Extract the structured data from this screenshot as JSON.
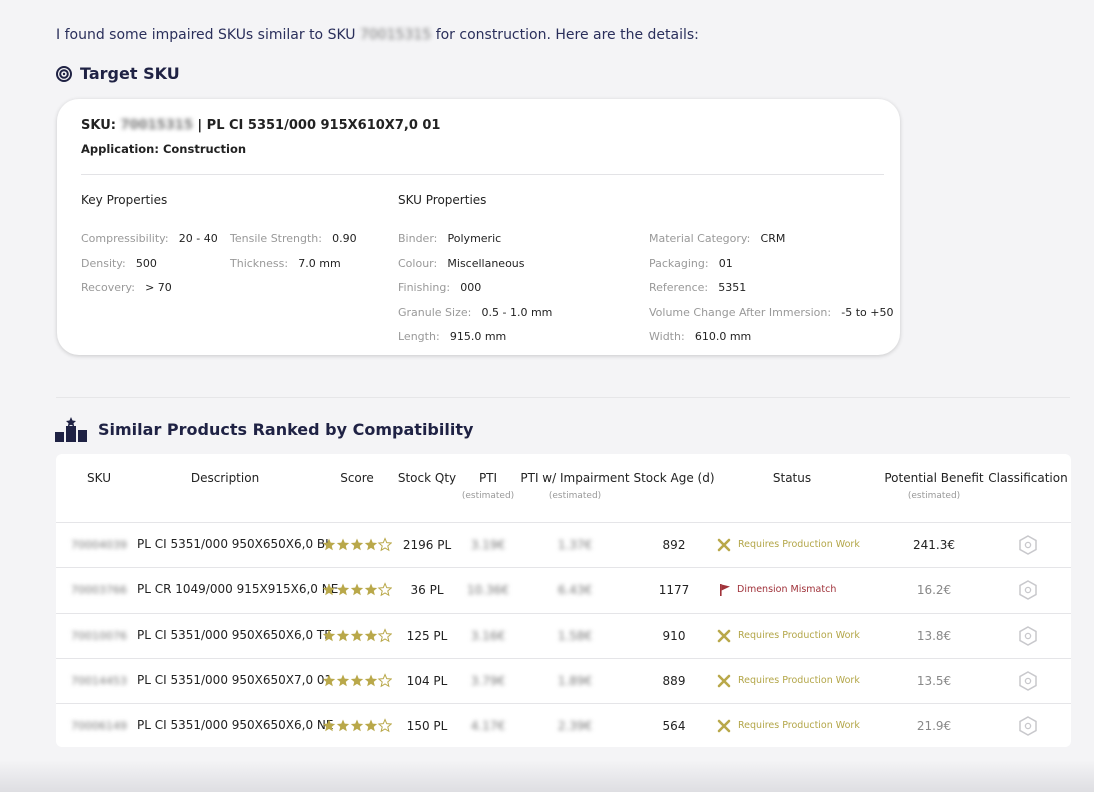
{
  "intro": {
    "before": "I found some impaired SKUs similar to SKU",
    "sku": "70015315",
    "after": "for construction. Here are the details:"
  },
  "target": {
    "heading": "Target SKU",
    "sku_label": "SKU:",
    "sku": "70015315",
    "sku_desc": "| PL CI 5351/000 915X610X7,0 01",
    "application": "Application: Construction",
    "key_title": "Key Properties",
    "key_props": [
      [
        {
          "label": "Compressibility:",
          "value": "20 - 40"
        },
        {
          "label": "Density:",
          "value": "500"
        },
        {
          "label": "Recovery:",
          "value": "> 70"
        }
      ],
      [
        {
          "label": "Tensile Strength:",
          "value": "0.90"
        },
        {
          "label": "Thickness:",
          "value": "7.0 mm"
        }
      ]
    ],
    "sku_title": "SKU Properties",
    "sku_props": [
      [
        {
          "label": "Binder:",
          "value": "Polymeric"
        },
        {
          "label": "Colour:",
          "value": "Miscellaneous"
        },
        {
          "label": "Finishing:",
          "value": "000"
        },
        {
          "label": "Granule Size:",
          "value": "0.5 - 1.0 mm"
        },
        {
          "label": "Length:",
          "value": "915.0 mm"
        }
      ],
      [
        {
          "label": "Material Category:",
          "value": "CRM"
        },
        {
          "label": "Packaging:",
          "value": "01"
        },
        {
          "label": "Reference:",
          "value": "5351"
        },
        {
          "label": "Volume Change After Immersion:",
          "value": "-5 to +50"
        },
        {
          "label": "Width:",
          "value": "610.0 mm"
        }
      ]
    ]
  },
  "similar": {
    "heading": "Similar Products Ranked by Compatibility",
    "columns": [
      {
        "label": "SKU"
      },
      {
        "label": "Description"
      },
      {
        "label": "Score"
      },
      {
        "label": "Stock Qty"
      },
      {
        "label": "PTI",
        "note": "(estimated)"
      },
      {
        "label": "PTI w/ Impairment",
        "note": "(estimated)"
      },
      {
        "label": "Stock Age (d)"
      },
      {
        "label": "Status"
      },
      {
        "label": "Potential Benefit",
        "note": "(estimated)"
      },
      {
        "label": "Classification"
      }
    ],
    "score_max": 5,
    "rows": [
      {
        "sku": "70004039",
        "description": "PL CI 5351/000 950X650X6,0 BI",
        "score": 4,
        "stock_qty": "2196 PL",
        "pti": "3.19€",
        "pti_impairment": "1.37€",
        "stock_age": 892,
        "status": "Requires Production Work",
        "benefit": "241.3€"
      },
      {
        "sku": "70003766",
        "description": "PL CR 1049/000 915X915X6,0 NE",
        "score": 4,
        "stock_qty": "36 PL",
        "pti": "10.36€",
        "pti_impairment": "6.43€",
        "stock_age": 1177,
        "status": "Dimension Mismatch",
        "benefit": "16.2€"
      },
      {
        "sku": "70010076",
        "description": "PL CI 5351/000 950X650X6,0 TE",
        "score": 4,
        "stock_qty": "125 PL",
        "pti": "3.16€",
        "pti_impairment": "1.58€",
        "stock_age": 910,
        "status": "Requires Production Work",
        "benefit": "13.8€"
      },
      {
        "sku": "70014453",
        "description": "PL CI 5351/000 950X650X7,0 01",
        "score": 4,
        "stock_qty": "104 PL",
        "pti": "3.79€",
        "pti_impairment": "1.89€",
        "stock_age": 889,
        "status": "Requires Production Work",
        "benefit": "13.5€"
      },
      {
        "sku": "70006149",
        "description": "PL CI 5351/000 950X650X6,0 NE",
        "score": 4,
        "stock_qty": "150 PL",
        "pti": "4.17€",
        "pti_impairment": "2.39€",
        "stock_age": 564,
        "status": "Requires Production Work",
        "benefit": "21.9€"
      }
    ]
  }
}
